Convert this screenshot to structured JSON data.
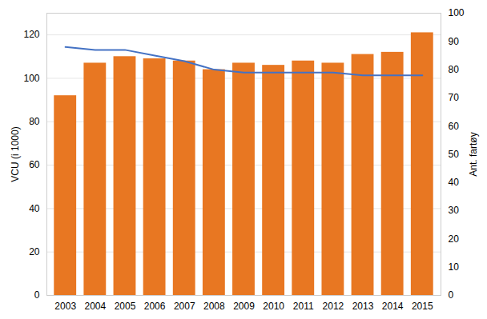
{
  "chart_data": {
    "type": "bar",
    "categories": [
      "2003",
      "2004",
      "2005",
      "2006",
      "2007",
      "2008",
      "2009",
      "2010",
      "2011",
      "2012",
      "2013",
      "2014",
      "2015"
    ],
    "ylabel": "VCU (i 1000)",
    "y2label": "Ant. fartøy",
    "ylim": [
      0,
      130
    ],
    "yticks": [
      0,
      20,
      40,
      60,
      80,
      100,
      120
    ],
    "y2lim": [
      0,
      100
    ],
    "y2ticks": [
      0,
      10,
      20,
      30,
      40,
      50,
      60,
      70,
      80,
      90,
      100
    ],
    "grid": true,
    "series": [
      {
        "type": "bar",
        "color": "#E87722",
        "values": [
          92,
          107,
          110,
          109,
          108,
          104,
          107,
          106,
          108,
          107,
          111,
          112,
          121
        ]
      },
      {
        "type": "line",
        "color": "#4472C4",
        "axis": "y2",
        "values": [
          88,
          87,
          87,
          85,
          83,
          80,
          79,
          79,
          79,
          79,
          78,
          78,
          78
        ]
      }
    ]
  }
}
